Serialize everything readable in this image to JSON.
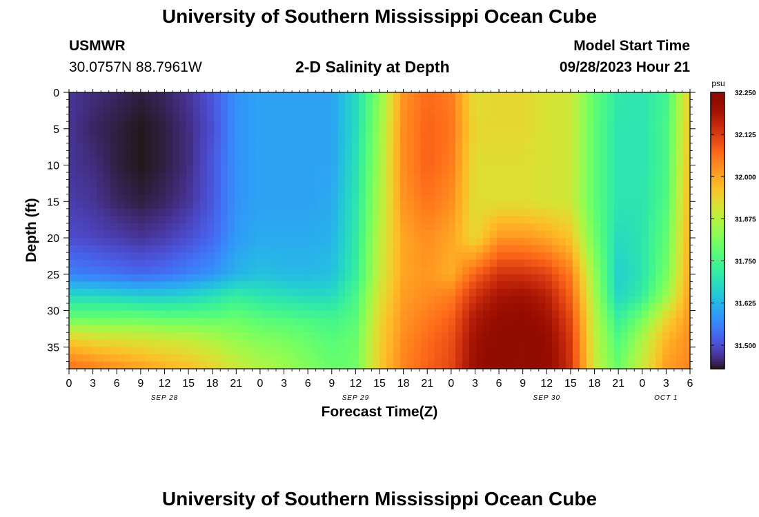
{
  "header": {
    "title": "University of Southern Mississippi Ocean Cube",
    "station_id": "USMWR",
    "coordinates": "30.0757N  88.7961W",
    "plot_title": "2-D Salinity at Depth",
    "model_start_label": "Model Start Time",
    "model_start_value": "09/28/2023 Hour 21"
  },
  "footer": {
    "title": "University of Southern Mississippi Ocean Cube"
  },
  "chart_data": {
    "type": "heatmap",
    "title": "2-D Salinity at Depth",
    "xlabel": "Forecast Time(Z)",
    "ylabel": "Depth (ft)",
    "x_tick_labels": [
      "0",
      "3",
      "6",
      "9",
      "12",
      "15",
      "18",
      "21",
      "0",
      "3",
      "6",
      "9",
      "12",
      "15",
      "18",
      "21",
      "0",
      "3",
      "6",
      "9",
      "12",
      "15",
      "18",
      "21",
      "0",
      "3",
      "6"
    ],
    "x_date_labels": [
      "SEP 28",
      "SEP 29",
      "SEP 30",
      "OCT 1"
    ],
    "x_range_hours": [
      0,
      78
    ],
    "y_tick_labels": [
      "0",
      "5",
      "10",
      "15",
      "20",
      "25",
      "30",
      "35"
    ],
    "ylim": [
      0,
      38
    ],
    "y_inverted": true,
    "colorbar": {
      "unit": "psu",
      "tick_labels": [
        "32.250",
        "32.125",
        "32.000",
        "31.875",
        "31.750",
        "31.625",
        "31.500"
      ],
      "range": [
        31.43,
        32.25
      ],
      "colormap": "turbo"
    },
    "times_hours": [
      0,
      3,
      6,
      9,
      12,
      15,
      18,
      21,
      24,
      27,
      30,
      33,
      36,
      39,
      42,
      45,
      48,
      51,
      54,
      57,
      60,
      63,
      66,
      69,
      72,
      75,
      78
    ],
    "depths_ft": [
      0,
      5,
      10,
      15,
      20,
      25,
      28,
      31,
      34,
      38
    ],
    "salinity_psu": [
      [
        31.47,
        31.46,
        31.45,
        31.44,
        31.45,
        31.47,
        31.51,
        31.58,
        31.6,
        31.6,
        31.6,
        31.6,
        31.68,
        31.82,
        32.02,
        32.07,
        32.05,
        31.92,
        31.93,
        31.93,
        31.91,
        31.9,
        31.78,
        31.71,
        31.7,
        31.74,
        31.95
      ],
      [
        31.47,
        31.45,
        31.44,
        31.43,
        31.44,
        31.46,
        31.5,
        31.58,
        31.6,
        31.6,
        31.6,
        31.6,
        31.68,
        31.84,
        32.03,
        32.08,
        32.06,
        31.93,
        31.93,
        31.93,
        31.91,
        31.9,
        31.78,
        31.7,
        31.7,
        31.75,
        31.96
      ],
      [
        31.47,
        31.46,
        31.44,
        31.43,
        31.44,
        31.46,
        31.51,
        31.58,
        31.6,
        31.6,
        31.6,
        31.6,
        31.69,
        31.85,
        32.03,
        32.08,
        32.05,
        31.92,
        31.92,
        31.92,
        31.91,
        31.9,
        31.78,
        31.7,
        31.7,
        31.75,
        31.97
      ],
      [
        31.48,
        31.47,
        31.45,
        31.44,
        31.45,
        31.47,
        31.51,
        31.58,
        31.6,
        31.6,
        31.6,
        31.61,
        31.7,
        31.86,
        32.02,
        32.06,
        32.03,
        31.92,
        31.92,
        31.92,
        31.91,
        31.9,
        31.78,
        31.7,
        31.7,
        31.76,
        31.98
      ],
      [
        31.5,
        31.49,
        31.48,
        31.47,
        31.48,
        31.5,
        31.53,
        31.59,
        31.61,
        31.61,
        31.61,
        31.62,
        31.71,
        31.88,
        32.0,
        32.03,
        32.0,
        31.93,
        32.02,
        32.02,
        32.0,
        31.96,
        31.8,
        31.68,
        31.7,
        31.78,
        31.99
      ],
      [
        31.56,
        31.55,
        31.54,
        31.53,
        31.54,
        31.56,
        31.58,
        31.62,
        31.64,
        31.63,
        31.63,
        31.64,
        31.72,
        31.89,
        32.0,
        32.02,
        31.99,
        32.08,
        32.14,
        32.14,
        32.12,
        32.05,
        31.84,
        31.66,
        31.7,
        31.8,
        32.0
      ],
      [
        31.68,
        31.68,
        31.67,
        31.66,
        31.66,
        31.67,
        31.69,
        31.72,
        31.7,
        31.69,
        31.68,
        31.68,
        31.75,
        31.91,
        32.01,
        32.03,
        32.05,
        32.14,
        32.19,
        32.2,
        32.17,
        32.08,
        31.86,
        31.67,
        31.72,
        31.84,
        32.01
      ],
      [
        31.79,
        31.79,
        31.79,
        31.79,
        31.78,
        31.78,
        31.78,
        31.79,
        31.77,
        31.76,
        31.75,
        31.74,
        31.77,
        31.93,
        32.02,
        32.05,
        32.08,
        32.18,
        32.22,
        32.23,
        32.2,
        32.11,
        31.88,
        31.72,
        31.8,
        31.93,
        32.02
      ],
      [
        31.95,
        31.93,
        31.92,
        31.91,
        31.9,
        31.89,
        31.87,
        31.84,
        31.82,
        31.81,
        31.79,
        31.77,
        31.79,
        31.94,
        32.03,
        32.07,
        32.1,
        32.2,
        32.24,
        32.25,
        32.22,
        32.13,
        31.89,
        31.76,
        31.86,
        31.98,
        32.03
      ],
      [
        32.07,
        32.05,
        32.03,
        32.01,
        31.99,
        31.97,
        31.94,
        31.9,
        31.87,
        31.85,
        31.82,
        31.79,
        31.8,
        31.95,
        32.04,
        32.08,
        32.11,
        32.21,
        32.25,
        32.25,
        32.23,
        32.14,
        31.9,
        31.79,
        31.9,
        32.01,
        32.04
      ]
    ]
  }
}
